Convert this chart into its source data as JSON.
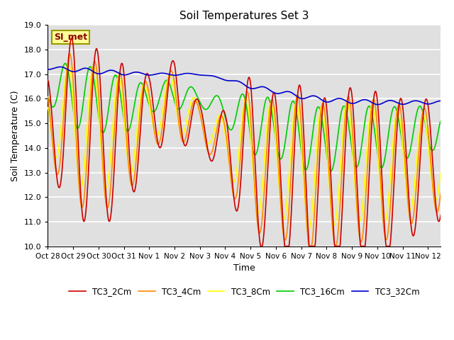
{
  "title": "Soil Temperatures Set 3",
  "xlabel": "Time",
  "ylabel": "Soil Temperature (C)",
  "ylim": [
    10.0,
    19.0
  ],
  "yticks": [
    10.0,
    11.0,
    12.0,
    13.0,
    14.0,
    15.0,
    16.0,
    17.0,
    18.0,
    19.0
  ],
  "xtick_labels": [
    "Oct 28",
    "Oct 29",
    "Oct 30",
    "Oct 31",
    "Nov 1",
    "Nov 2",
    "Nov 3",
    "Nov 4",
    "Nov 5",
    "Nov 6",
    "Nov 7",
    "Nov 8",
    "Nov 9",
    "Nov 10",
    "Nov 11",
    "Nov 12"
  ],
  "legend_labels": [
    "TC3_2Cm",
    "TC3_4Cm",
    "TC3_8Cm",
    "TC3_16Cm",
    "TC3_32Cm"
  ],
  "line_colors": [
    "#cc0000",
    "#ff8800",
    "#ffff00",
    "#00cc00",
    "#0000cc"
  ],
  "bg_color": "#e0e0e0",
  "annotation_text": "SI_met",
  "n_days": 15.5,
  "pts_per_day": 48
}
